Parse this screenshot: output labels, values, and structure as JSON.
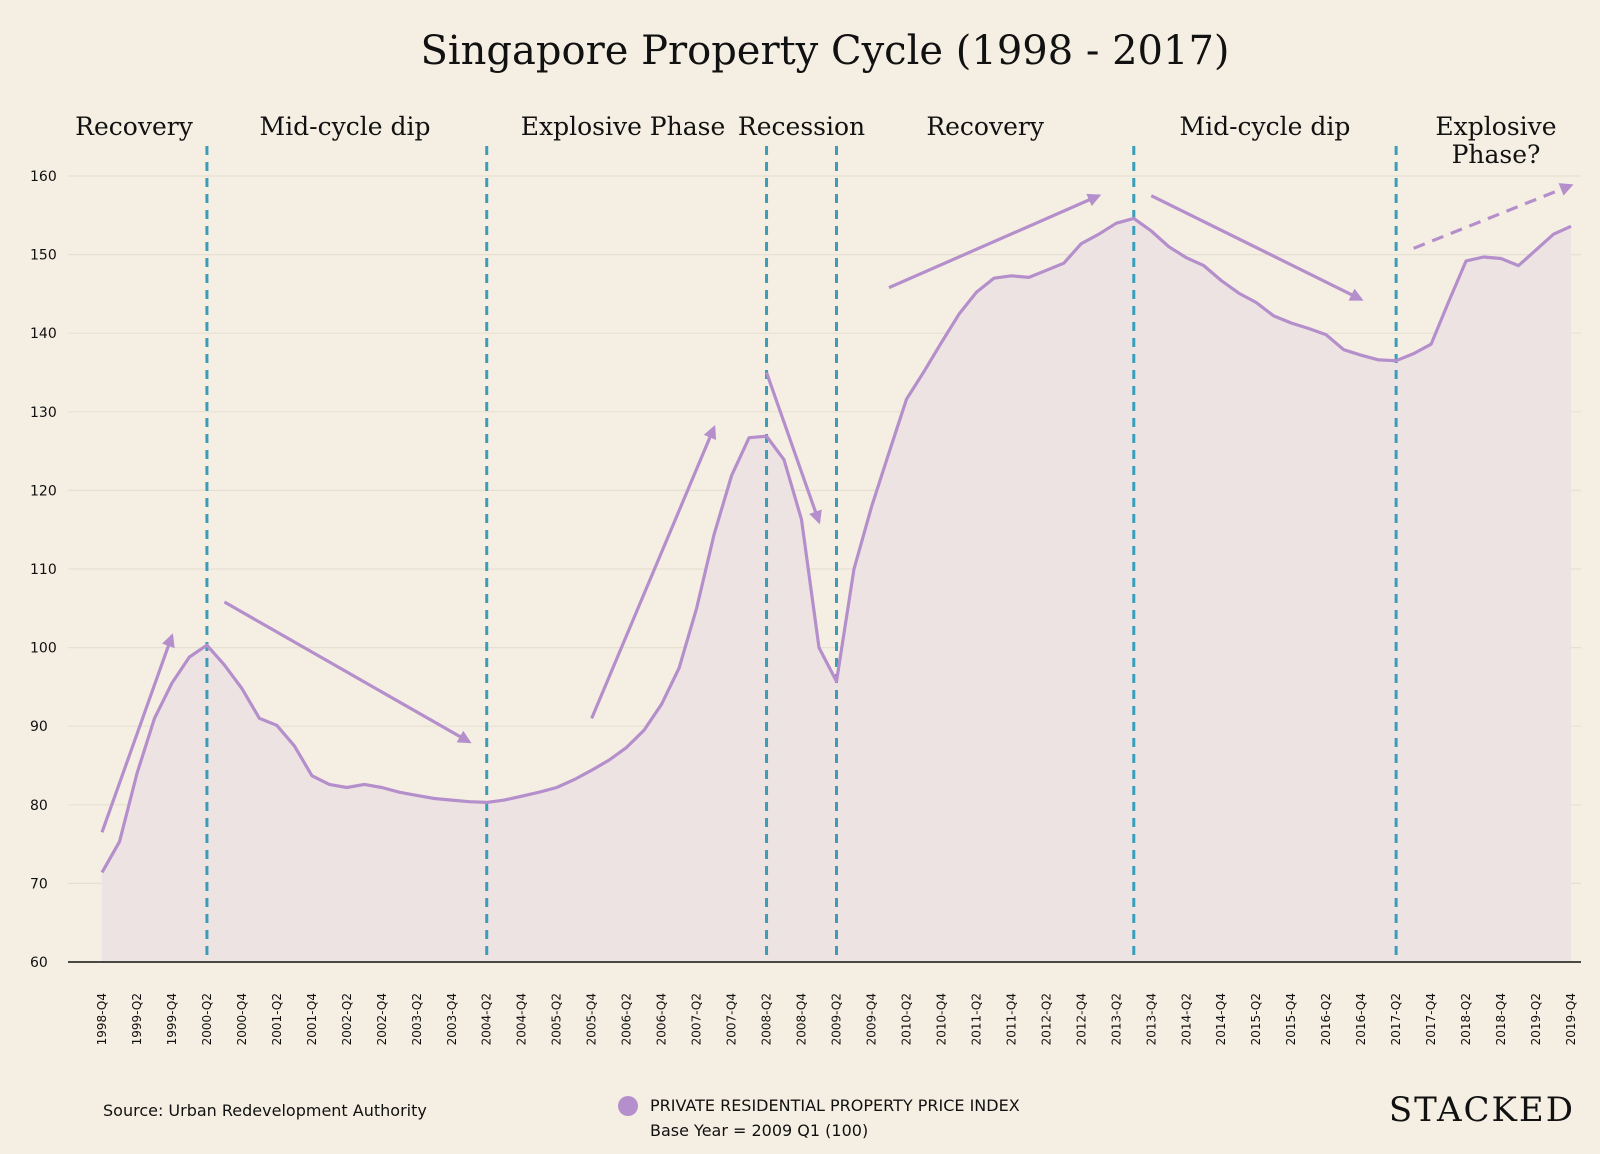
{
  "chart_data": {
    "type": "area",
    "title": "Singapore Property Cycle (1998 - 2017)",
    "ylim": [
      60,
      160
    ],
    "yticks": [
      60,
      70,
      80,
      90,
      100,
      110,
      120,
      130,
      140,
      150,
      160
    ],
    "x_tick_labels": [
      "1998-Q4",
      "1999-Q2",
      "1999-Q4",
      "2000-Q2",
      "2000-Q4",
      "2001-Q2",
      "2001-Q4",
      "2002-Q2",
      "2002-Q4",
      "2003-Q2",
      "2003-Q4",
      "2004-Q2",
      "2004-Q4",
      "2005-Q2",
      "2005-Q4",
      "2006-Q2",
      "2006-Q4",
      "2007-Q2",
      "2007-Q4",
      "2008-Q2",
      "2008-Q4",
      "2009-Q2",
      "2009-Q4",
      "2010-Q2",
      "2010-Q4",
      "2011-Q2",
      "2011-Q4",
      "2012-Q2",
      "2012-Q4",
      "2013-Q2",
      "2013-Q4",
      "2014-Q2",
      "2014-Q4",
      "2015-Q2",
      "2015-Q4",
      "2016-Q2",
      "2016-Q4",
      "2017-Q2",
      "2017-Q4",
      "2018-Q2",
      "2018-Q4",
      "2019-Q2",
      "2019-Q4"
    ],
    "x": [
      "1998-Q4",
      "1999-Q1",
      "1999-Q2",
      "1999-Q3",
      "1999-Q4",
      "2000-Q1",
      "2000-Q2",
      "2000-Q3",
      "2000-Q4",
      "2001-Q1",
      "2001-Q2",
      "2001-Q3",
      "2001-Q4",
      "2002-Q1",
      "2002-Q2",
      "2002-Q3",
      "2002-Q4",
      "2003-Q1",
      "2003-Q2",
      "2003-Q3",
      "2003-Q4",
      "2004-Q1",
      "2004-Q2",
      "2004-Q3",
      "2004-Q4",
      "2005-Q1",
      "2005-Q2",
      "2005-Q3",
      "2005-Q4",
      "2006-Q1",
      "2006-Q2",
      "2006-Q3",
      "2006-Q4",
      "2007-Q1",
      "2007-Q2",
      "2007-Q3",
      "2007-Q4",
      "2008-Q1",
      "2008-Q2",
      "2008-Q3",
      "2008-Q4",
      "2009-Q1",
      "2009-Q2",
      "2009-Q3",
      "2009-Q4",
      "2010-Q1",
      "2010-Q2",
      "2010-Q3",
      "2010-Q4",
      "2011-Q1",
      "2011-Q2",
      "2011-Q3",
      "2011-Q4",
      "2012-Q1",
      "2012-Q2",
      "2012-Q3",
      "2012-Q4",
      "2013-Q1",
      "2013-Q2",
      "2013-Q3",
      "2013-Q4",
      "2014-Q1",
      "2014-Q2",
      "2014-Q3",
      "2014-Q4",
      "2015-Q1",
      "2015-Q2",
      "2015-Q3",
      "2015-Q4",
      "2016-Q1",
      "2016-Q2",
      "2016-Q3",
      "2016-Q4",
      "2017-Q1",
      "2017-Q2",
      "2017-Q3",
      "2017-Q4",
      "2018-Q1",
      "2018-Q2",
      "2018-Q3",
      "2018-Q4",
      "2019-Q1",
      "2019-Q2",
      "2019-Q3",
      "2019-Q4"
    ],
    "series": [
      {
        "name": "PRIVATE RESIDENTIAL PROPERTY PRICE INDEX",
        "color": "#b48fcb",
        "values": [
          71.4,
          75.3,
          84.0,
          91.0,
          95.5,
          98.8,
          100.3,
          97.8,
          94.8,
          91.0,
          90.1,
          87.5,
          83.7,
          82.6,
          82.2,
          82.6,
          82.2,
          81.6,
          81.2,
          80.8,
          80.6,
          80.4,
          80.3,
          80.6,
          81.1,
          81.6,
          82.2,
          83.2,
          84.4,
          85.7,
          87.3,
          89.5,
          92.8,
          97.4,
          105.0,
          114.4,
          121.9,
          126.7,
          126.9,
          123.9,
          116.3,
          100.0,
          95.7,
          110.0,
          117.9,
          124.8,
          131.6,
          135.1,
          138.8,
          142.4,
          145.2,
          147.0,
          147.3,
          147.1,
          148.0,
          148.9,
          151.4,
          152.6,
          154.0,
          154.6,
          153.0,
          151.0,
          149.6,
          148.6,
          146.7,
          145.1,
          143.9,
          142.2,
          141.3,
          140.6,
          139.8,
          137.9,
          137.2,
          136.6,
          136.5,
          137.4,
          138.6,
          144.0,
          149.2,
          149.7,
          149.5,
          148.6,
          150.6,
          152.6,
          153.6
        ]
      }
    ],
    "phases": [
      "Recovery",
      "Mid-cycle dip",
      "Explosive Phase",
      "Recession",
      "Recovery",
      "Mid-cycle dip",
      "Explosive\nPhase?"
    ],
    "phase_boundaries": [
      "2000-Q2",
      "2004-Q2",
      "2008-Q2",
      "2009-Q2",
      "2013-Q3",
      "2017-Q2"
    ],
    "trend_arrows": [
      {
        "from": [
          "1998-Q4",
          76.5
        ],
        "to": [
          "1999-Q4",
          101.5
        ],
        "dashed": false
      },
      {
        "from": [
          "2000-Q3",
          105.8
        ],
        "to": [
          "2004-Q1",
          88.0
        ],
        "dashed": false
      },
      {
        "from": [
          "2005-Q4",
          91.0
        ],
        "to": [
          "2007-Q3",
          128.0
        ],
        "dashed": false
      },
      {
        "from": [
          "2008-Q2",
          135.0
        ],
        "to": [
          "2009-Q1",
          116.0
        ],
        "dashed": false
      },
      {
        "from": [
          "2010-Q1",
          145.8
        ],
        "to": [
          "2013-Q1",
          157.5
        ],
        "dashed": false
      },
      {
        "from": [
          "2013-Q4",
          157.5
        ],
        "to": [
          "2016-Q4",
          144.3
        ],
        "dashed": false
      },
      {
        "from": [
          "2017-Q3",
          150.8
        ],
        "to": [
          "2019-Q4",
          158.8
        ],
        "dashed": true
      }
    ],
    "source": "Source: Urban Redevelopment Authority",
    "legend": {
      "label": "PRIVATE RESIDENTIAL PROPERTY PRICE INDEX",
      "sublabel": "Base Year = 2009 Q1 (100)"
    },
    "grid": true
  },
  "brand": "STACKED",
  "colors": {
    "background": "#f5efe3",
    "line": "#b48fcb",
    "area": "#ede3e2",
    "divider": "#3a9dba",
    "grid": "#e6e0d3"
  }
}
